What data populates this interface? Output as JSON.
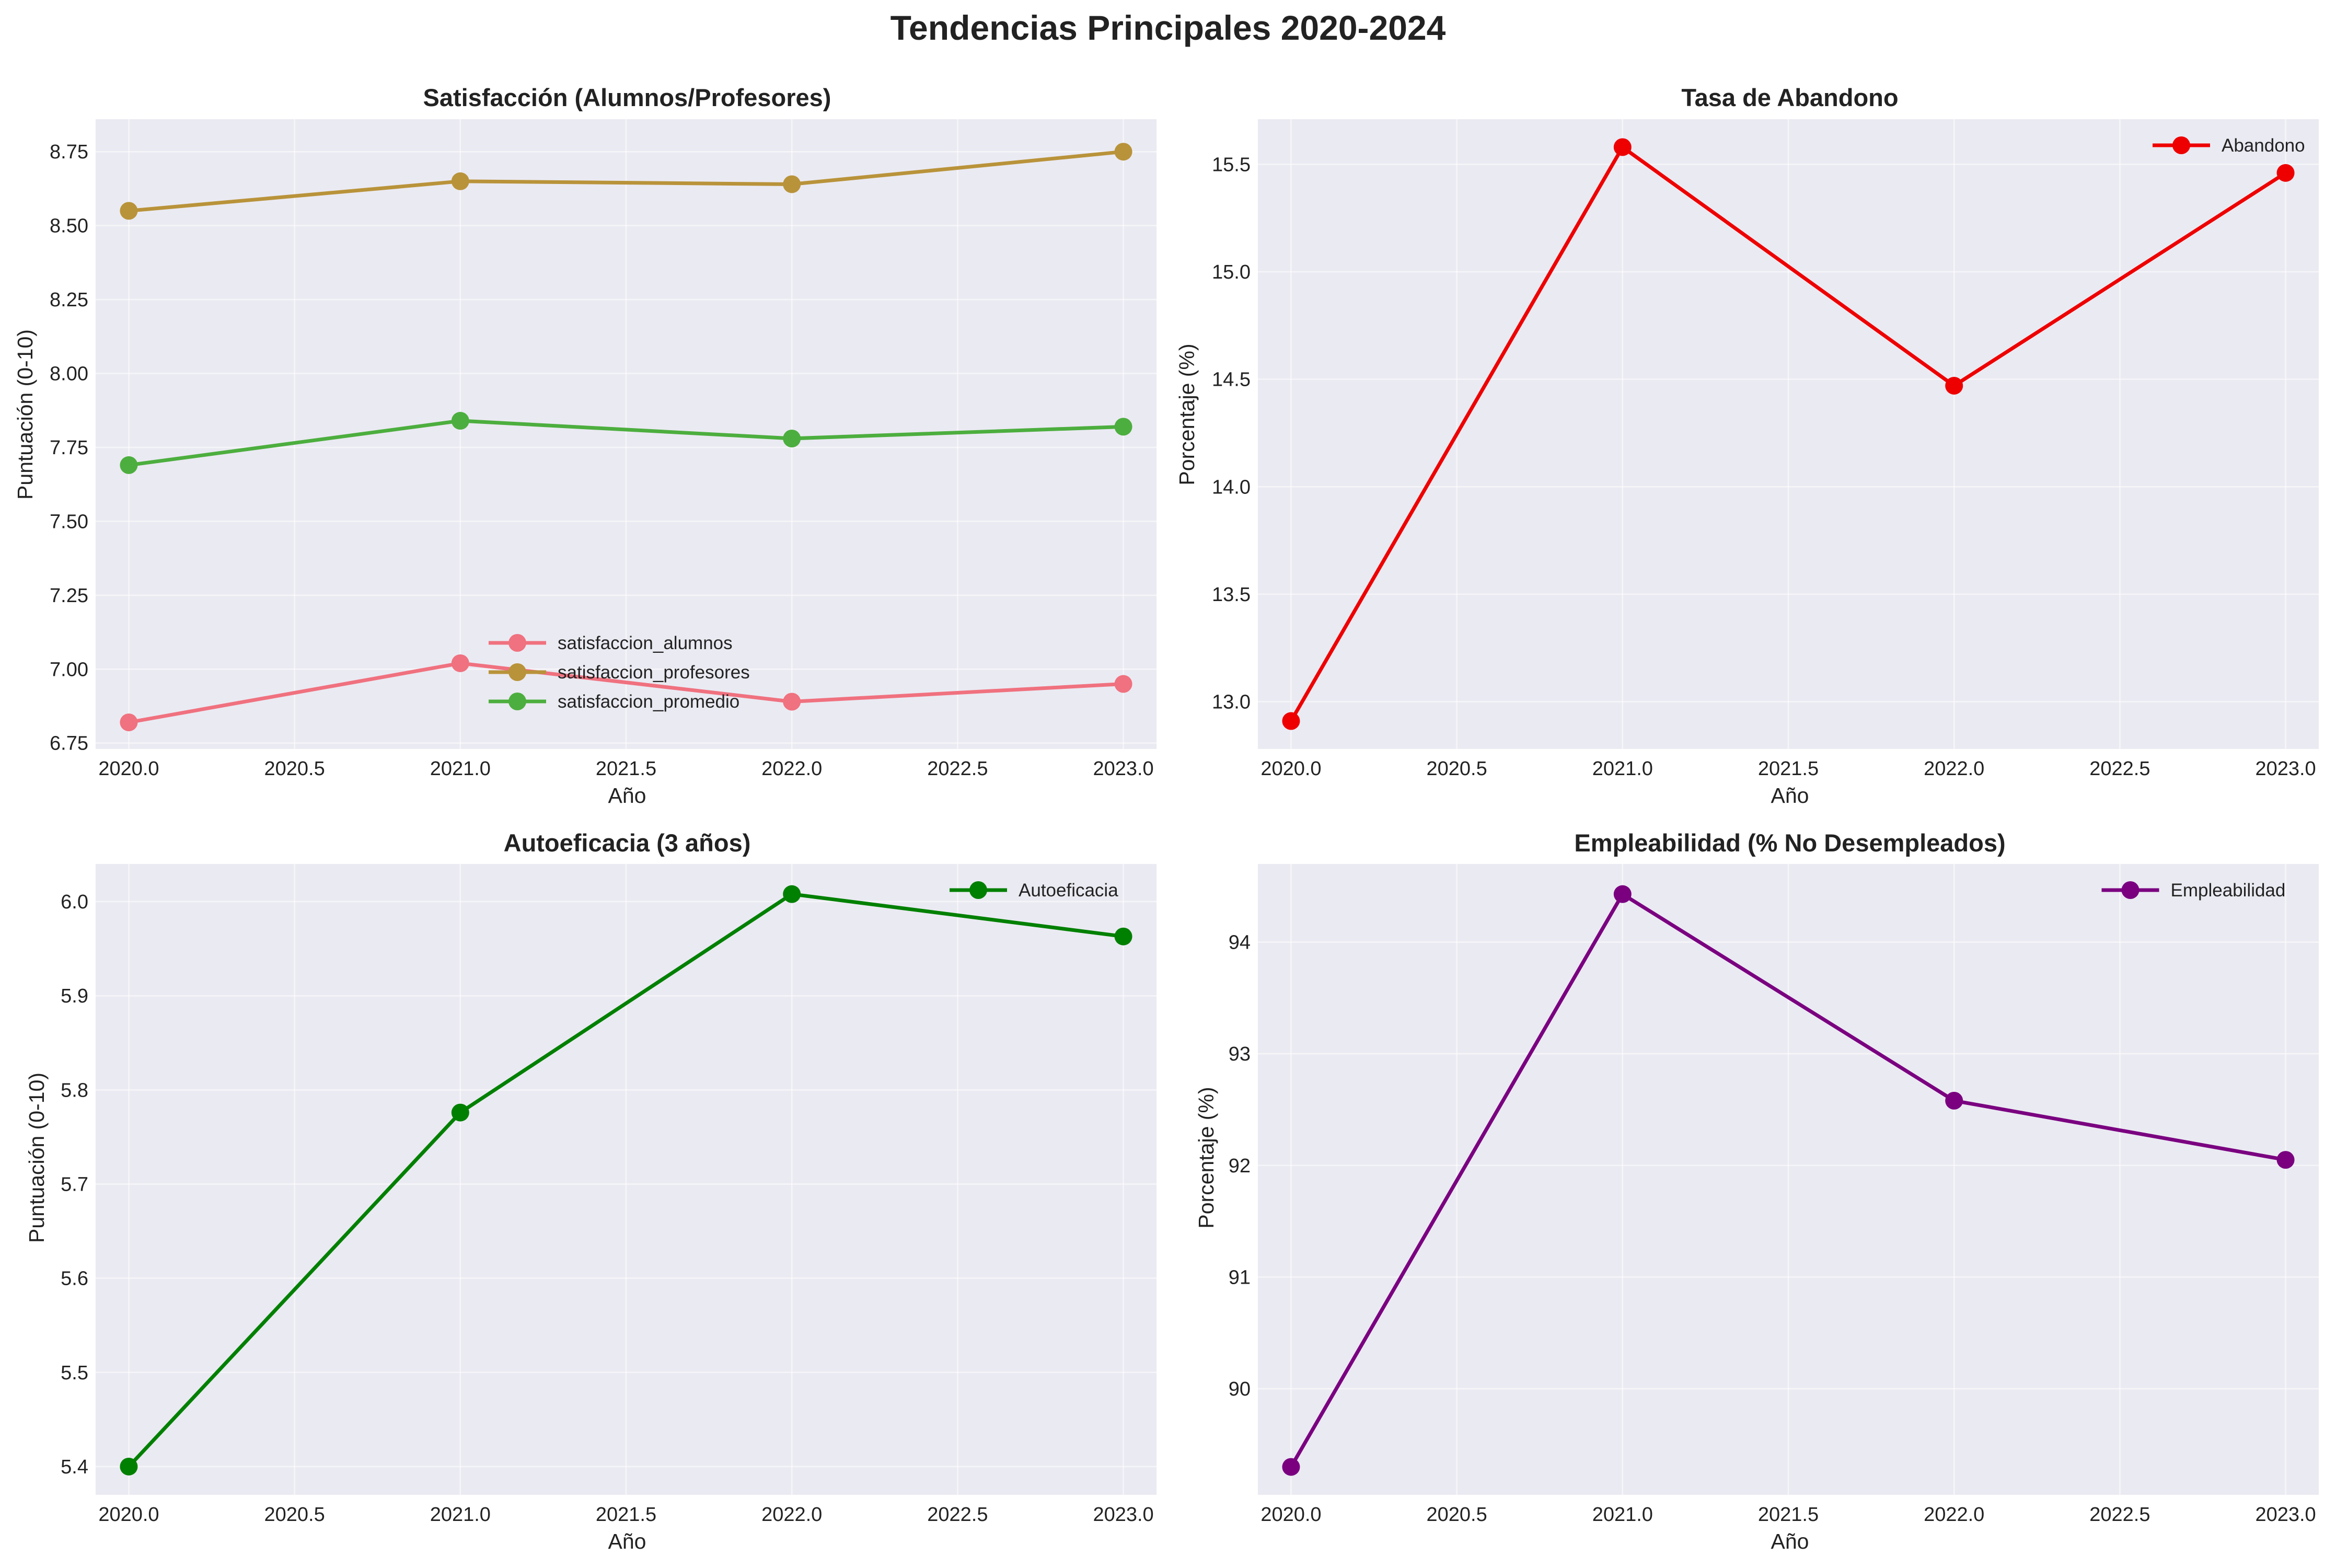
{
  "figure_title": "Tendencias Principales 2020-2024",
  "chart_data": [
    {
      "type": "line",
      "title": "Satisfacción (Alumnos/Profesores)",
      "xlabel": "Año",
      "ylabel": "Puntuación (0-10)",
      "x": [
        2020,
        2021,
        2022,
        2023
      ],
      "xlim": [
        2019.9,
        2023.1
      ],
      "ylim": [
        6.73,
        8.86
      ],
      "xticks": [
        "2020.0",
        "2020.5",
        "2021.0",
        "2021.5",
        "2022.0",
        "2022.5",
        "2023.0"
      ],
      "yticks": [
        "6.75",
        "7.00",
        "7.25",
        "7.50",
        "7.75",
        "8.00",
        "8.25",
        "8.50",
        "8.75"
      ],
      "legend_position": "lower center",
      "grid": true,
      "series": [
        {
          "name": "satisfaccion_alumnos",
          "color": "#f0717f",
          "values": [
            6.82,
            7.02,
            6.89,
            6.95
          ]
        },
        {
          "name": "satisfaccion_profesores",
          "color": "#b9933a",
          "values": [
            8.55,
            8.65,
            8.64,
            8.75
          ]
        },
        {
          "name": "satisfaccion_promedio",
          "color": "#4cae3e",
          "values": [
            7.69,
            7.84,
            7.78,
            7.82
          ]
        }
      ]
    },
    {
      "type": "line",
      "title": "Tasa de Abandono",
      "xlabel": "Año",
      "ylabel": "Porcentaje (%)",
      "x": [
        2020,
        2021,
        2022,
        2023
      ],
      "xlim": [
        2019.9,
        2023.1
      ],
      "ylim": [
        12.78,
        15.71
      ],
      "xticks": [
        "2020.0",
        "2020.5",
        "2021.0",
        "2021.5",
        "2022.0",
        "2022.5",
        "2023.0"
      ],
      "yticks": [
        "13.0",
        "13.5",
        "14.0",
        "14.5",
        "15.0",
        "15.5"
      ],
      "legend_position": "upper right",
      "grid": true,
      "series": [
        {
          "name": "Abandono",
          "color": "#ee0000",
          "values": [
            12.91,
            15.58,
            14.47,
            15.46
          ]
        }
      ]
    },
    {
      "type": "line",
      "title": "Autoeficacia (3 años)",
      "xlabel": "Año",
      "ylabel": "Puntuación (0-10)",
      "x": [
        2020,
        2021,
        2022,
        2023
      ],
      "xlim": [
        2019.9,
        2023.1
      ],
      "ylim": [
        5.37,
        6.04
      ],
      "xticks": [
        "2020.0",
        "2020.5",
        "2021.0",
        "2021.5",
        "2022.0",
        "2022.5",
        "2023.0"
      ],
      "yticks": [
        "5.4",
        "5.5",
        "5.6",
        "5.7",
        "5.8",
        "5.9",
        "6.0"
      ],
      "legend_position": "upper right",
      "grid": true,
      "series": [
        {
          "name": "Autoeficacia",
          "color": "#008000",
          "values": [
            5.4,
            5.776,
            6.008,
            5.963
          ]
        }
      ]
    },
    {
      "type": "line",
      "title": "Empleabilidad (% No Desempleados)",
      "xlabel": "Año",
      "ylabel": "Porcentaje (%)",
      "x": [
        2020,
        2021,
        2022,
        2023
      ],
      "xlim": [
        2019.9,
        2023.1
      ],
      "ylim": [
        89.05,
        94.7
      ],
      "xticks": [
        "2020.0",
        "2020.5",
        "2021.0",
        "2021.5",
        "2022.0",
        "2022.5",
        "2023.0"
      ],
      "yticks": [
        "90",
        "91",
        "92",
        "93",
        "94"
      ],
      "legend_position": "upper right",
      "grid": true,
      "series": [
        {
          "name": "Empleabilidad",
          "color": "#7a0080",
          "values": [
            89.3,
            94.43,
            92.58,
            92.05
          ]
        }
      ]
    }
  ]
}
